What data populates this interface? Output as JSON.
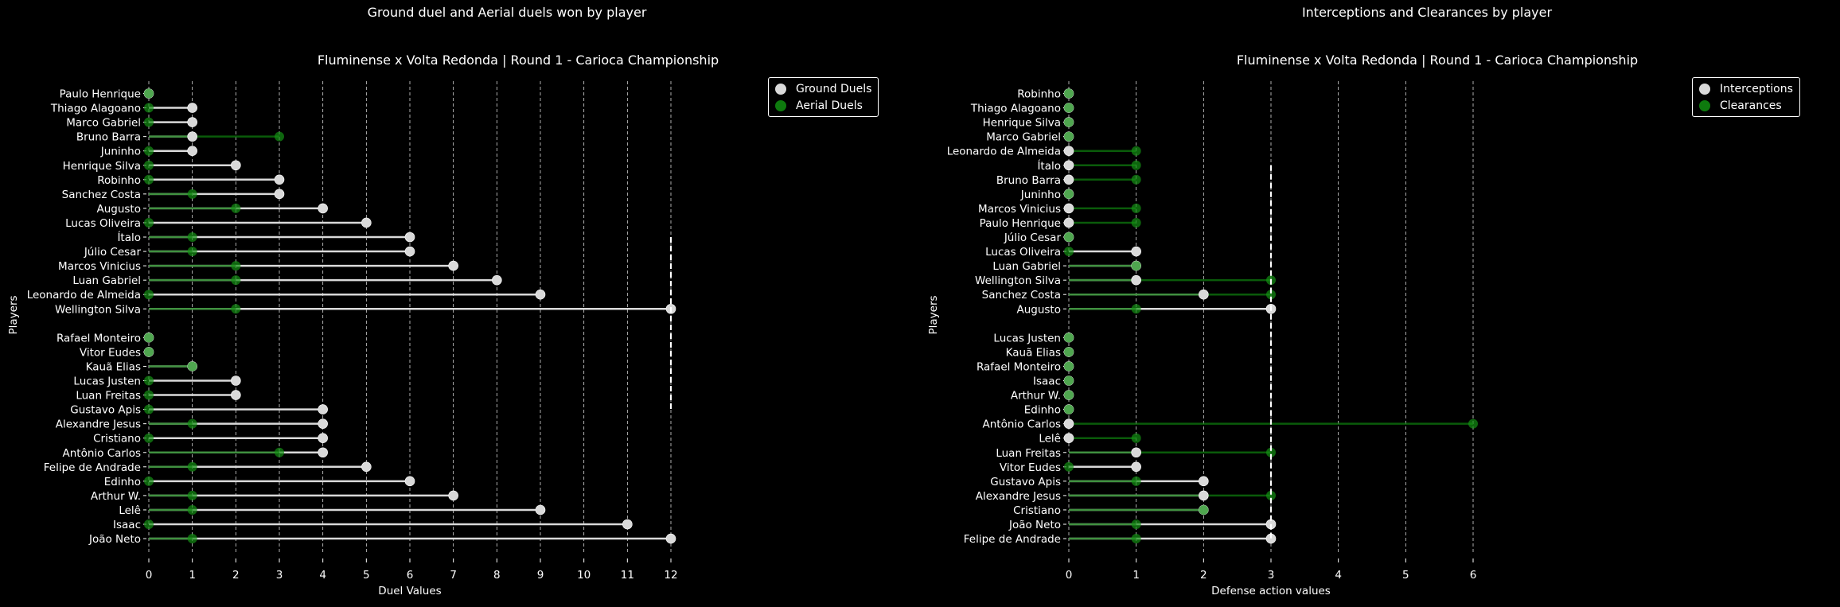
{
  "suptitles": {
    "left": "Ground duel and Aerial duels won by player",
    "right": "Interceptions and Clearances by player"
  },
  "colors": {
    "background": "#000000",
    "series_a": "#d9d9d9",
    "series_b": "#0e7a0e",
    "grid": "#ffffff"
  },
  "chart_data": [
    {
      "type": "lollipop",
      "title": "Fluminense x Volta Redonda | Round 1 - Carioca Championship",
      "xlabel": "Duel Values",
      "ylabel": "Players",
      "xlim": [
        0,
        12
      ],
      "xticks": [
        "0",
        "1",
        "2",
        "3",
        "4",
        "5",
        "6",
        "7",
        "8",
        "9",
        "10",
        "11",
        "12"
      ],
      "grid": "vertical dashed",
      "legend_position": "top-right",
      "series": [
        {
          "name": "Ground Duels",
          "color": "#d9d9d9"
        },
        {
          "name": "Aerial Duels",
          "color": "#0e7a0e"
        }
      ],
      "separator_value": 12,
      "groups": [
        {
          "players": [
            {
              "name": "Paulo Henrique",
              "a": 0,
              "b": 0
            },
            {
              "name": "Thiago Alagoano",
              "a": 1,
              "b": 0
            },
            {
              "name": "Marco Gabriel",
              "a": 1,
              "b": 0
            },
            {
              "name": "Bruno Barra",
              "a": 1,
              "b": 3
            },
            {
              "name": "Juninho",
              "a": 1,
              "b": 0
            },
            {
              "name": "Henrique Silva",
              "a": 2,
              "b": 0
            },
            {
              "name": "Robinho",
              "a": 3,
              "b": 0
            },
            {
              "name": "Sanchez Costa",
              "a": 3,
              "b": 1
            },
            {
              "name": "Augusto",
              "a": 4,
              "b": 2
            },
            {
              "name": "Lucas Oliveira",
              "a": 5,
              "b": 0
            },
            {
              "name": "Ítalo",
              "a": 6,
              "b": 1
            },
            {
              "name": "Júlio Cesar",
              "a": 6,
              "b": 1
            },
            {
              "name": "Marcos Vinicius",
              "a": 7,
              "b": 2
            },
            {
              "name": "Luan Gabriel",
              "a": 8,
              "b": 2
            },
            {
              "name": "Leonardo de Almeida",
              "a": 9,
              "b": 0
            },
            {
              "name": "Wellington Silva",
              "a": 12,
              "b": 2
            }
          ]
        },
        {
          "players": [
            {
              "name": "Rafael Monteiro",
              "a": 0,
              "b": 0
            },
            {
              "name": "Vitor Eudes",
              "a": 0,
              "b": 0
            },
            {
              "name": "Kauã Elias",
              "a": 1,
              "b": 1
            },
            {
              "name": "Lucas Justen",
              "a": 2,
              "b": 0
            },
            {
              "name": "Luan Freitas",
              "a": 2,
              "b": 0
            },
            {
              "name": "Gustavo Apis",
              "a": 4,
              "b": 0
            },
            {
              "name": "Alexandre Jesus",
              "a": 4,
              "b": 1
            },
            {
              "name": "Cristiano",
              "a": 4,
              "b": 0
            },
            {
              "name": "Antônio Carlos",
              "a": 4,
              "b": 3
            },
            {
              "name": "Felipe de Andrade",
              "a": 5,
              "b": 1
            },
            {
              "name": "Edinho",
              "a": 6,
              "b": 0
            },
            {
              "name": "Arthur W.",
              "a": 7,
              "b": 1
            },
            {
              "name": "Lelê",
              "a": 9,
              "b": 1
            },
            {
              "name": "Isaac",
              "a": 11,
              "b": 0
            },
            {
              "name": "João Neto",
              "a": 12,
              "b": 1
            }
          ]
        }
      ]
    },
    {
      "type": "lollipop",
      "title": "Fluminense x Volta Redonda | Round 1 - Carioca Championship",
      "xlabel": "Defense action values",
      "ylabel": "Players",
      "xlim": [
        0,
        6
      ],
      "xticks": [
        "0",
        "1",
        "2",
        "3",
        "4",
        "5",
        "6"
      ],
      "grid": "vertical dashed",
      "legend_position": "top-right",
      "series": [
        {
          "name": "Interceptions",
          "color": "#d9d9d9"
        },
        {
          "name": "Clearances",
          "color": "#0e7a0e"
        }
      ],
      "separator_value": 3,
      "groups": [
        {
          "players": [
            {
              "name": "Robinho",
              "a": 0,
              "b": 0
            },
            {
              "name": "Thiago Alagoano",
              "a": 0,
              "b": 0
            },
            {
              "name": "Henrique Silva",
              "a": 0,
              "b": 0
            },
            {
              "name": "Marco Gabriel",
              "a": 0,
              "b": 0
            },
            {
              "name": "Leonardo de Almeida",
              "a": 0,
              "b": 1
            },
            {
              "name": "Ítalo",
              "a": 0,
              "b": 1
            },
            {
              "name": "Bruno Barra",
              "a": 0,
              "b": 1
            },
            {
              "name": "Juninho",
              "a": 0,
              "b": 0
            },
            {
              "name": "Marcos Vinicius",
              "a": 0,
              "b": 1
            },
            {
              "name": "Paulo Henrique",
              "a": 0,
              "b": 1
            },
            {
              "name": "Júlio Cesar",
              "a": 0,
              "b": 0
            },
            {
              "name": "Lucas Oliveira",
              "a": 1,
              "b": 0
            },
            {
              "name": "Luan Gabriel",
              "a": 1,
              "b": 1
            },
            {
              "name": "Wellington Silva",
              "a": 1,
              "b": 3
            },
            {
              "name": "Sanchez Costa",
              "a": 2,
              "b": 3
            },
            {
              "name": "Augusto",
              "a": 3,
              "b": 1
            }
          ]
        },
        {
          "players": [
            {
              "name": "Lucas Justen",
              "a": 0,
              "b": 0
            },
            {
              "name": "Kauã Elias",
              "a": 0,
              "b": 0
            },
            {
              "name": "Rafael Monteiro",
              "a": 0,
              "b": 0
            },
            {
              "name": "Isaac",
              "a": 0,
              "b": 0
            },
            {
              "name": "Arthur W.",
              "a": 0,
              "b": 0
            },
            {
              "name": "Edinho",
              "a": 0,
              "b": 0
            },
            {
              "name": "Antônio Carlos",
              "a": 0,
              "b": 6
            },
            {
              "name": "Lelê",
              "a": 0,
              "b": 1
            },
            {
              "name": "Luan Freitas",
              "a": 1,
              "b": 3
            },
            {
              "name": "Vitor Eudes",
              "a": 1,
              "b": 0
            },
            {
              "name": "Gustavo Apis",
              "a": 2,
              "b": 1
            },
            {
              "name": "Alexandre Jesus",
              "a": 2,
              "b": 3
            },
            {
              "name": "Cristiano",
              "a": 2,
              "b": 2
            },
            {
              "name": "João Neto",
              "a": 3,
              "b": 1
            },
            {
              "name": "Felipe de Andrade",
              "a": 3,
              "b": 1
            }
          ]
        }
      ]
    }
  ]
}
